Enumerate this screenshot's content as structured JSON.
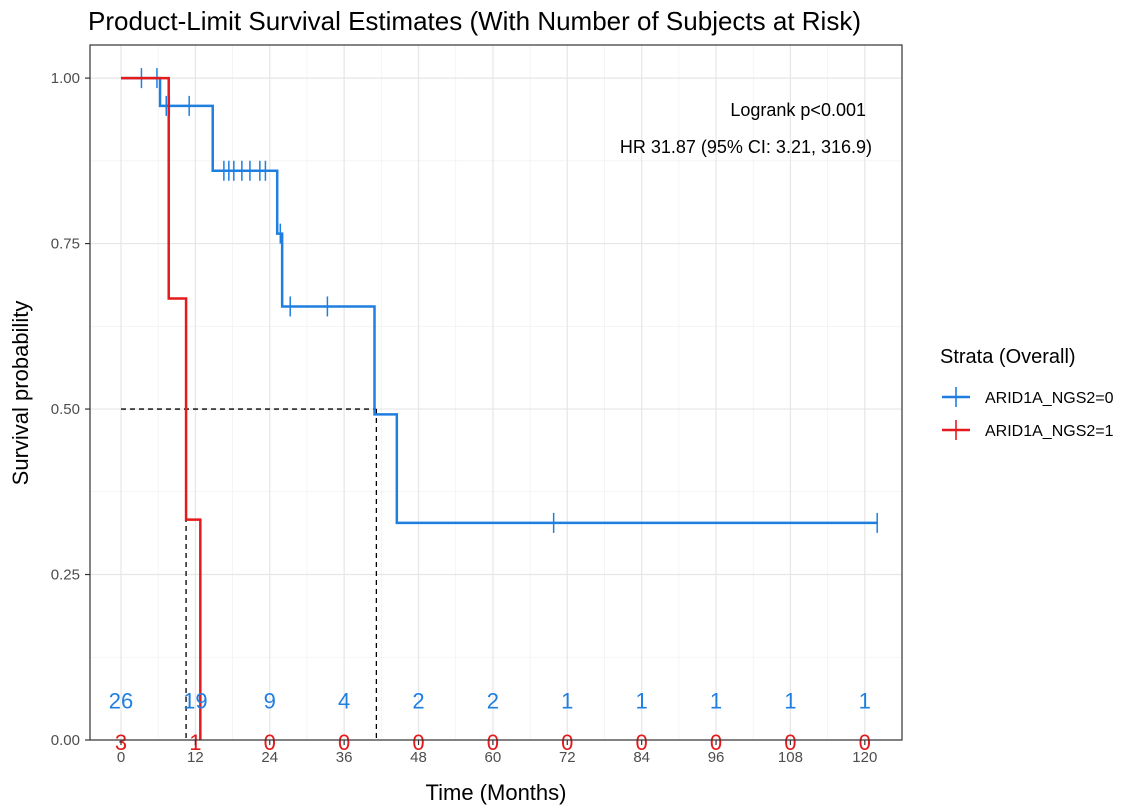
{
  "chart_data": {
    "type": "line",
    "subtype": "kaplan-meier",
    "title": "Product-Limit Survival Estimates (With Number of Subjects at Risk)",
    "xlabel": "Time (Months)",
    "ylabel": "Survival probability",
    "xlim": [
      -5,
      126
    ],
    "ylim": [
      0,
      1.05
    ],
    "x_ticks": [
      0,
      12,
      24,
      36,
      48,
      60,
      72,
      84,
      96,
      108,
      120
    ],
    "x_tick_labels": [
      "0",
      "12",
      "24",
      "36",
      "48",
      "60",
      "72",
      "84",
      "96",
      "108",
      "120"
    ],
    "y_ticks": [
      0,
      0.25,
      0.5,
      0.75,
      1.0
    ],
    "y_tick_labels": [
      "0.00",
      "0.25",
      "0.50",
      "0.75",
      "1.00"
    ],
    "grid": true,
    "annotations": [
      "Logrank p<0.001",
      "HR 31.87 (95% CI: 3.21, 316.9)"
    ],
    "legend": {
      "title": "Strata (Overall)",
      "position": "right",
      "entries": [
        "ARID1A_NGS2=0",
        "ARID1A_NGS2=1"
      ]
    },
    "median_line": {
      "y": 0.5,
      "x_end": 41.2,
      "drops": [
        10.5,
        41.2
      ]
    },
    "series": [
      {
        "name": "ARID1A_NGS2=0",
        "color": "#1f7fe0",
        "steps": [
          [
            0,
            1.0
          ],
          [
            6.3,
            0.958
          ],
          [
            14.8,
            0.86
          ],
          [
            25.2,
            0.765
          ],
          [
            26.0,
            0.655
          ],
          [
            40.9,
            0.492
          ],
          [
            44.5,
            0.328
          ],
          [
            122,
            0.328
          ]
        ],
        "censor": [
          [
            3.3,
            1.0
          ],
          [
            5.8,
            1.0
          ],
          [
            7.3,
            0.958
          ],
          [
            7.8,
            0.958
          ],
          [
            11.0,
            0.958
          ],
          [
            16.6,
            0.86
          ],
          [
            17.4,
            0.86
          ],
          [
            18.2,
            0.86
          ],
          [
            19.5,
            0.86
          ],
          [
            20.8,
            0.86
          ],
          [
            22.4,
            0.86
          ],
          [
            23.3,
            0.86
          ],
          [
            25.7,
            0.765
          ],
          [
            27.3,
            0.655
          ],
          [
            33.3,
            0.655
          ],
          [
            69.8,
            0.328
          ],
          [
            122,
            0.328
          ]
        ],
        "at_risk": [
          "26",
          "19",
          "9",
          "4",
          "2",
          "2",
          "1",
          "1",
          "1",
          "1",
          "1"
        ]
      },
      {
        "name": "ARID1A_NGS2=1",
        "color": "#e41a1c",
        "steps": [
          [
            0,
            1.0
          ],
          [
            7.7,
            0.667
          ],
          [
            10.5,
            0.333
          ],
          [
            12.8,
            0.0
          ]
        ],
        "censor": [],
        "at_risk": [
          "3",
          "1",
          "0",
          "0",
          "0",
          "0",
          "0",
          "0",
          "0",
          "0",
          "0"
        ]
      }
    ]
  }
}
